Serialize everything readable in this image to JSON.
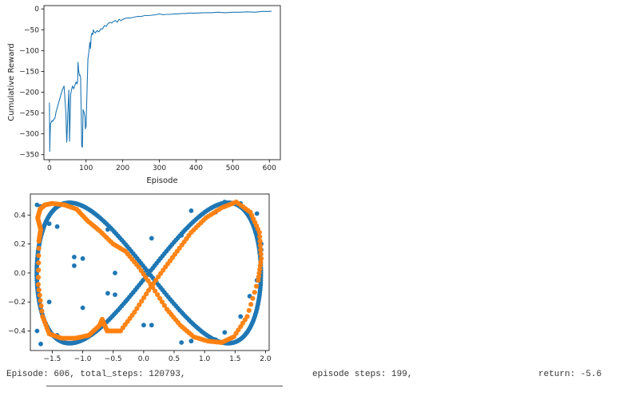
{
  "chart_data": [
    {
      "type": "line",
      "title": "",
      "xlabel": "Episode",
      "ylabel": "Cumulative Reward",
      "xlim": [
        -15,
        630
      ],
      "ylim": [
        -362,
        8
      ],
      "xticks": [
        0,
        100,
        200,
        300,
        400,
        500,
        600
      ],
      "yticks": [
        0,
        -50,
        -100,
        -150,
        -200,
        -250,
        -300,
        -350
      ],
      "grid": false,
      "color": "#1f77b4",
      "series": [
        {
          "name": "",
          "x": [
            0,
            1,
            2,
            3,
            5,
            7,
            9,
            12,
            15,
            18,
            22,
            25,
            30,
            35,
            40,
            45,
            47,
            48,
            50,
            53,
            55,
            58,
            60,
            63,
            66,
            70,
            73,
            75,
            77,
            78,
            80,
            82,
            83,
            85,
            87,
            88,
            90,
            92,
            95,
            97,
            98,
            100,
            101,
            103,
            105,
            107,
            109,
            110,
            112,
            114,
            116,
            118,
            120,
            122,
            125,
            130,
            135,
            140,
            145,
            150,
            155,
            160,
            165,
            170,
            175,
            180,
            185,
            190,
            195,
            200,
            210,
            220,
            230,
            240,
            250,
            260,
            270,
            280,
            290,
            300,
            310,
            320,
            330,
            340,
            350,
            360,
            370,
            380,
            390,
            400,
            420,
            440,
            460,
            480,
            500,
            520,
            540,
            560,
            580,
            600,
            606
          ],
          "y": [
            -225,
            -342,
            -300,
            -275,
            -272,
            -268,
            -270,
            -265,
            -262,
            -248,
            -235,
            -225,
            -210,
            -195,
            -185,
            -250,
            -320,
            -312,
            -255,
            -195,
            -318,
            -205,
            -195,
            -185,
            -192,
            -182,
            -175,
            -180,
            -175,
            -128,
            -150,
            -160,
            -158,
            -165,
            -260,
            -330,
            -332,
            -242,
            -250,
            -260,
            -288,
            -282,
            -250,
            -180,
            -120,
            -108,
            -92,
            -80,
            -95,
            -65,
            -58,
            -62,
            -50,
            -55,
            -58,
            -52,
            -55,
            -48,
            -48,
            -40,
            -42,
            -35,
            -32,
            -34,
            -30,
            -28,
            -32,
            -25,
            -28,
            -25,
            -22,
            -22,
            -20,
            -18,
            -18,
            -16,
            -16,
            -15,
            -14,
            -12,
            -14,
            -13,
            -13,
            -12,
            -12,
            -11,
            -11,
            -10,
            -10,
            -10,
            -9,
            -9,
            -8,
            -9,
            -8,
            -8,
            -7,
            -8,
            -6,
            -6,
            -5.6
          ]
        }
      ]
    },
    {
      "type": "scatter",
      "title": "",
      "xlabel": "",
      "ylabel": "",
      "xlim": [
        -1.86,
        2.06
      ],
      "ylim": [
        -0.535,
        0.545
      ],
      "xticks": [
        -1.5,
        -1.0,
        -0.5,
        0.0,
        0.5,
        1.0,
        1.5,
        2.0
      ],
      "xtick_labels": [
        "−1.5",
        "−1.0",
        "−0.5",
        "0.0",
        "0.5",
        "1.0",
        "1.5",
        "2.0"
      ],
      "yticks": [
        0.4,
        0.2,
        0.0,
        -0.2,
        -0.4
      ],
      "ytick_labels": [
        "0.4",
        "0.2",
        "0.0",
        "−0.2",
        "−0.4"
      ],
      "grid": false,
      "series": [
        {
          "name": "",
          "color": "#1f77b4",
          "curve": "figure-eight",
          "x": [
            0.0,
            0.62,
            1.18,
            1.59,
            1.86,
            1.93,
            1.74,
            1.33,
            0.78,
            0.13,
            -0.47,
            -1.0,
            -1.42,
            -1.69,
            -1.75,
            -1.55,
            -1.14,
            -0.59,
            0.0,
            0.62,
            1.18,
            1.59,
            1.86,
            1.93,
            1.74,
            1.33,
            0.78,
            0.13,
            -0.47,
            -1.0,
            -1.42,
            -1.69,
            -1.75,
            -1.55,
            -1.14,
            -0.59
          ],
          "y": [
            0.0,
            0.26,
            0.42,
            0.48,
            0.41,
            0.16,
            -0.16,
            -0.41,
            -0.47,
            -0.36,
            -0.15,
            0.1,
            0.32,
            0.46,
            0.47,
            0.34,
            0.11,
            -0.14,
            -0.36,
            -0.48,
            -0.46,
            -0.3,
            -0.05,
            0.2,
            0.4,
            0.49,
            0.43,
            0.24,
            0.0,
            -0.24,
            -0.43,
            -0.49,
            -0.4,
            -0.2,
            0.05,
            0.3
          ]
        },
        {
          "name": "",
          "color": "#ff7f0e",
          "x": [
            -1.72,
            -1.69,
            -1.74,
            -1.7,
            -1.62,
            -1.5,
            -1.3,
            -1.1,
            -0.92,
            -0.72,
            -0.5,
            -0.3,
            -0.08,
            0.15,
            0.38,
            0.6,
            0.82,
            1.05,
            1.28,
            1.48,
            1.7,
            1.88,
            1.93,
            1.9,
            1.75,
            1.52,
            1.28,
            1.02,
            0.78,
            0.55,
            0.32,
            0.08,
            -0.15,
            -0.38,
            -0.6,
            -0.68,
            -0.72,
            -0.9,
            -1.12,
            -1.35,
            -1.55,
            -1.66,
            -1.73
          ],
          "y": [
            0.22,
            0.3,
            0.38,
            0.44,
            0.47,
            0.48,
            0.47,
            0.44,
            0.36,
            0.29,
            0.2,
            0.15,
            0.04,
            -0.1,
            -0.25,
            -0.36,
            -0.44,
            -0.47,
            -0.48,
            -0.44,
            -0.3,
            -0.05,
            0.1,
            0.28,
            0.42,
            0.49,
            0.45,
            0.38,
            0.28,
            0.15,
            0.02,
            -0.12,
            -0.27,
            -0.4,
            -0.4,
            -0.32,
            -0.36,
            -0.43,
            -0.45,
            -0.45,
            -0.42,
            -0.3,
            -0.08
          ]
        }
      ]
    }
  ],
  "log": {
    "episode": "Episode: 606, total_steps: 120793,",
    "steps": "episode steps: 199,",
    "return": "return: -5.6"
  }
}
